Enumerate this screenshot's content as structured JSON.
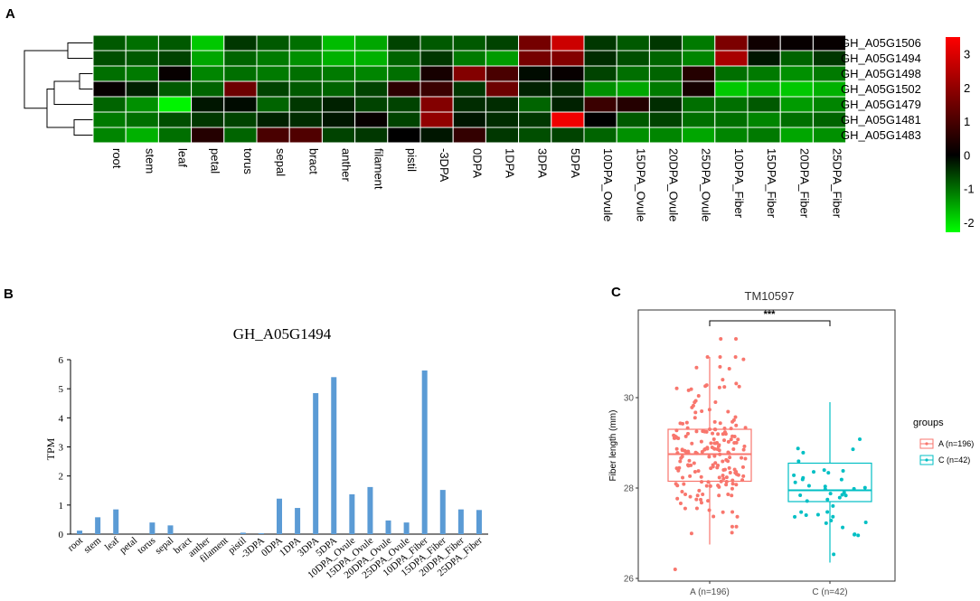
{
  "chart_data": [
    {
      "panel": "A",
      "type": "heatmap",
      "title": "",
      "rows": [
        "GH_A05G1506",
        "GH_A05G1494",
        "GH_A05G1498",
        "GH_A05G1502",
        "GH_A05G1479",
        "GH_A05G1481",
        "GH_A05G1483"
      ],
      "columns": [
        "root",
        "stem",
        "leaf",
        "petal",
        "torus",
        "sepal",
        "bract",
        "anther",
        "filament",
        "pistil",
        "-3DPA",
        "0DPA",
        "1DPA",
        "3DPA",
        "5DPA",
        "10DPA_Ovule",
        "15DPA_Ovule",
        "20DPA_Ovule",
        "25DPA_Ovule",
        "10DPA_Fiber",
        "15DPA_Fiber",
        "20DPA_Fiber",
        "25DPA_Fiber"
      ],
      "values": [
        [
          -0.8,
          -1.0,
          -0.8,
          -1.8,
          -0.5,
          -0.8,
          -1.0,
          -1.7,
          -1.5,
          -0.6,
          -0.8,
          -0.8,
          -0.6,
          1.6,
          2.8,
          -0.5,
          -0.8,
          -0.5,
          -1.1,
          1.7,
          0.2,
          0.1,
          0.1
        ],
        [
          -0.7,
          -0.8,
          -0.6,
          -1.5,
          -0.9,
          -1.1,
          -1.3,
          -1.6,
          -1.6,
          -0.9,
          -0.5,
          -1.1,
          -1.4,
          1.6,
          1.8,
          -0.4,
          -0.7,
          -0.9,
          -1.2,
          2.3,
          -0.2,
          -0.9,
          -0.5
        ],
        [
          -1.0,
          -1.1,
          0.1,
          -1.2,
          -1.0,
          -1.1,
          -1.0,
          -1.1,
          -1.2,
          -1.0,
          0.3,
          1.8,
          1.0,
          -0.1,
          0.1,
          -0.6,
          -1.0,
          -0.9,
          0.5,
          -1.0,
          -1.1,
          -1.3,
          -1.1
        ],
        [
          0.1,
          -0.3,
          -0.8,
          -0.9,
          1.5,
          -0.6,
          -0.8,
          -0.9,
          -0.6,
          0.6,
          0.8,
          -0.5,
          1.5,
          -0.3,
          -0.4,
          -1.3,
          -1.5,
          -1.1,
          0.3,
          -1.8,
          -1.6,
          -1.8,
          -1.6
        ],
        [
          -0.9,
          -1.3,
          -2.2,
          -0.2,
          -0.1,
          -0.9,
          -0.5,
          -0.3,
          -0.6,
          -0.6,
          1.8,
          -0.4,
          -0.4,
          -0.9,
          -0.3,
          0.8,
          0.5,
          -0.4,
          -1.0,
          -1.0,
          -0.8,
          -1.4,
          -1.2
        ],
        [
          -1.1,
          -1.0,
          -0.7,
          -0.5,
          -0.6,
          -0.3,
          -0.4,
          -0.2,
          0.1,
          -0.6,
          2.0,
          -0.2,
          -0.4,
          -0.5,
          3.3,
          0.0,
          -0.8,
          -0.6,
          -1.0,
          -1.0,
          -1.2,
          -1.0,
          -0.9
        ],
        [
          -1.2,
          -1.6,
          -1.0,
          0.5,
          -0.9,
          1.0,
          1.1,
          -0.6,
          -0.5,
          0.0,
          -0.2,
          0.7,
          -0.5,
          -0.7,
          -0.6,
          -0.9,
          -1.3,
          -1.2,
          -1.5,
          -1.2,
          -1.1,
          -1.5,
          -1.3
        ]
      ],
      "colorbar": {
        "min": -2.3,
        "max": 3.5,
        "ticks": [
          3,
          2,
          1,
          0,
          -1,
          -2
        ],
        "low_color": "#00ff00",
        "mid_color": "#000000",
        "high_color": "#ff0000"
      }
    },
    {
      "panel": "B",
      "type": "bar",
      "title": "GH_A05G1494",
      "categories": [
        "root",
        "stem",
        "leaf",
        "petal",
        "torus",
        "sepal",
        "bract",
        "anther",
        "filament",
        "pistil",
        "-3DPA",
        "0DPA",
        "1DPA",
        "3DPA",
        "5DPA",
        "10DPA_Ovule",
        "15DPA_Ovule",
        "20DPA_Ovule",
        "25DPA_Ovule",
        "10DPA_Fiber",
        "15DPA_Fiber",
        "20DPA_Fiber",
        "25DPA_Fiber"
      ],
      "values": [
        0.12,
        0.58,
        0.85,
        0.0,
        0.4,
        0.3,
        0.0,
        0.0,
        0.0,
        0.05,
        0.03,
        1.22,
        0.9,
        4.85,
        5.4,
        1.37,
        1.62,
        0.47,
        0.4,
        5.63,
        1.52,
        0.85,
        0.83
      ],
      "xlabel": "",
      "ylabel": "TPM",
      "ylim": [
        0,
        6
      ],
      "yticks": [
        0,
        1,
        2,
        3,
        4,
        5,
        6
      ],
      "color": "#5b9bd5"
    },
    {
      "panel": "C",
      "type": "box",
      "title": "TM10597",
      "ylabel": "Fiber length (mm)",
      "ylim": [
        26,
        32
      ],
      "yticks": [
        26,
        28,
        30
      ],
      "significance": "***",
      "legend_title": "groups",
      "groups": [
        {
          "name": "A (n=196)",
          "n": 196,
          "color": "#f8766d",
          "q1": 28.15,
          "median": 28.75,
          "q3": 29.3,
          "whisker_low": 26.75,
          "whisker_high": 30.9,
          "outliers": [
            26.2,
            31.3,
            31.3
          ]
        },
        {
          "name": "C (n=42)",
          "n": 42,
          "color": "#00bfc4",
          "q1": 27.7,
          "median": 27.95,
          "q3": 28.55,
          "whisker_low": 26.35,
          "whisker_high": 29.9,
          "outliers": []
        }
      ]
    }
  ],
  "panels": {
    "a": "A",
    "b": "B",
    "c": "C"
  }
}
